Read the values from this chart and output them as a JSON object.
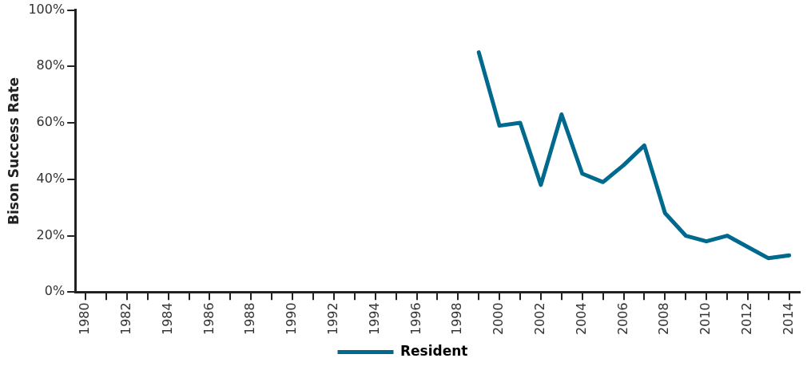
{
  "chart_data": {
    "type": "line",
    "ylabel": "Bison Success Rate",
    "categories": [
      "1980",
      null,
      "1982",
      null,
      "1984",
      null,
      "1986",
      null,
      "1988",
      null,
      "1990",
      null,
      "1992",
      null,
      "1994",
      null,
      "1996",
      null,
      "1998",
      null,
      "2000",
      null,
      "2002",
      null,
      "2004",
      null,
      "2006",
      null,
      "2008",
      null,
      "2010",
      null,
      "2012",
      null,
      "2014"
    ],
    "series": [
      {
        "name": "Resident",
        "color": "#006a8e",
        "values": [
          null,
          null,
          null,
          null,
          null,
          null,
          null,
          null,
          null,
          null,
          null,
          null,
          null,
          null,
          null,
          null,
          null,
          null,
          null,
          85,
          59,
          60,
          38,
          63,
          42,
          39,
          45,
          52,
          28,
          20,
          18,
          20,
          16,
          12,
          13
        ]
      }
    ],
    "ylim": [
      0,
      100
    ],
    "yticks": [
      {
        "value": 0,
        "label": "0%"
      },
      {
        "value": 20,
        "label": "20%"
      },
      {
        "value": 40,
        "label": "40%"
      },
      {
        "value": 60,
        "label": "60%"
      },
      {
        "value": 80,
        "label": "80%"
      },
      {
        "value": 100,
        "label": "100%"
      }
    ],
    "grid": false,
    "legend": "bottom",
    "marker": "none",
    "line_style": "solid"
  }
}
